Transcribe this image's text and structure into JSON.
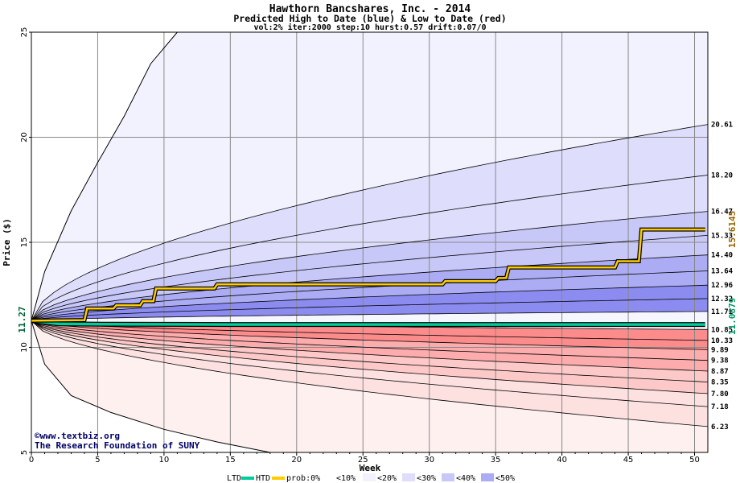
{
  "chart_data": {
    "type": "area",
    "title": "Hawthorn Bancshares, Inc. - 2014",
    "subtitle": "Predicted High to Date (blue) &  Low to Date (red)",
    "params": "vol:2% iter:2000 step:10 hurst:0.57 drift:0.07/0",
    "xlabel": "Week",
    "ylabel": "Price ($)",
    "xlim": [
      0,
      51
    ],
    "ylim": [
      5,
      25
    ],
    "x_ticks": [
      0,
      5,
      10,
      15,
      20,
      25,
      30,
      35,
      40,
      45,
      50
    ],
    "y_ticks": [
      5,
      10,
      15,
      20,
      25
    ],
    "start_price": 11.27,
    "start_price_label": "11.27",
    "htd_value_label": "15.6145",
    "ltd_value_label": "11.0879",
    "band_end_labels": [
      "20.61",
      "18.20",
      "16.47",
      "15.33",
      "14.40",
      "13.64",
      "12.96",
      "12.32",
      "11.71",
      "10.85",
      "10.33",
      "9.89",
      "9.38",
      "8.87",
      "8.35",
      "7.80",
      "7.18",
      "6.23"
    ],
    "upper_quantiles_end": [
      11.71,
      12.32,
      12.96,
      13.64,
      14.4,
      15.33,
      16.47,
      18.2,
      20.61
    ],
    "lower_quantiles_end": [
      10.85,
      10.33,
      9.89,
      9.38,
      8.87,
      8.35,
      7.8,
      7.18,
      6.23
    ],
    "upper_envelope_points": [
      [
        0,
        11.27
      ],
      [
        1,
        13.6
      ],
      [
        3,
        16.5
      ],
      [
        5,
        18.8
      ],
      [
        7,
        21.0
      ],
      [
        9,
        23.5
      ],
      [
        11,
        25.0
      ]
    ],
    "lower_envelope_points": [
      [
        0,
        11.27
      ],
      [
        1,
        9.2
      ],
      [
        3,
        7.7
      ],
      [
        6,
        6.9
      ],
      [
        10,
        6.1
      ],
      [
        14,
        5.5
      ],
      [
        18,
        5.0
      ]
    ],
    "htd_series": [
      [
        0,
        11.27
      ],
      [
        4,
        11.3
      ],
      [
        4.2,
        11.85
      ],
      [
        6.2,
        11.85
      ],
      [
        6.4,
        12.0
      ],
      [
        8.2,
        12.0
      ],
      [
        8.4,
        12.2
      ],
      [
        9.2,
        12.2
      ],
      [
        9.4,
        12.8
      ],
      [
        13.8,
        12.8
      ],
      [
        14.0,
        13.0
      ],
      [
        31.0,
        13.0
      ],
      [
        31.2,
        13.15
      ],
      [
        35.0,
        13.15
      ],
      [
        35.2,
        13.3
      ],
      [
        35.8,
        13.3
      ],
      [
        36.0,
        13.8
      ],
      [
        44.0,
        13.8
      ],
      [
        44.2,
        14.1
      ],
      [
        45.8,
        14.1
      ],
      [
        46.0,
        15.61
      ],
      [
        50.8,
        15.61
      ]
    ],
    "ltd_series": [
      [
        0,
        11.27
      ],
      [
        2,
        11.12
      ],
      [
        6,
        11.1
      ],
      [
        15,
        11.09
      ],
      [
        50.8,
        11.088
      ]
    ],
    "legend": {
      "ltd": "LTD",
      "htd": "HTD",
      "prob_prefix": "prob:0%",
      "items": [
        "<10%",
        "<20%",
        "<30%",
        "<40%",
        "<50%"
      ]
    },
    "colors": {
      "htd": "#ffcc00",
      "ltd": "#00cc99",
      "htd_label": "#996600",
      "ltd_label": "#009966",
      "start_label": "#006633",
      "blue_bands": [
        "#f2f2ff",
        "#dedefc",
        "#c8c8f8",
        "#acacf4",
        "#8c8cf0"
      ],
      "red_bands": [
        "#fff0f0",
        "#fde0e0",
        "#fcc8c8",
        "#fcacac",
        "#fc8c8c"
      ]
    }
  },
  "credits": {
    "site": "©www.textbiz.org",
    "org": "The Research Foundation of SUNY"
  }
}
